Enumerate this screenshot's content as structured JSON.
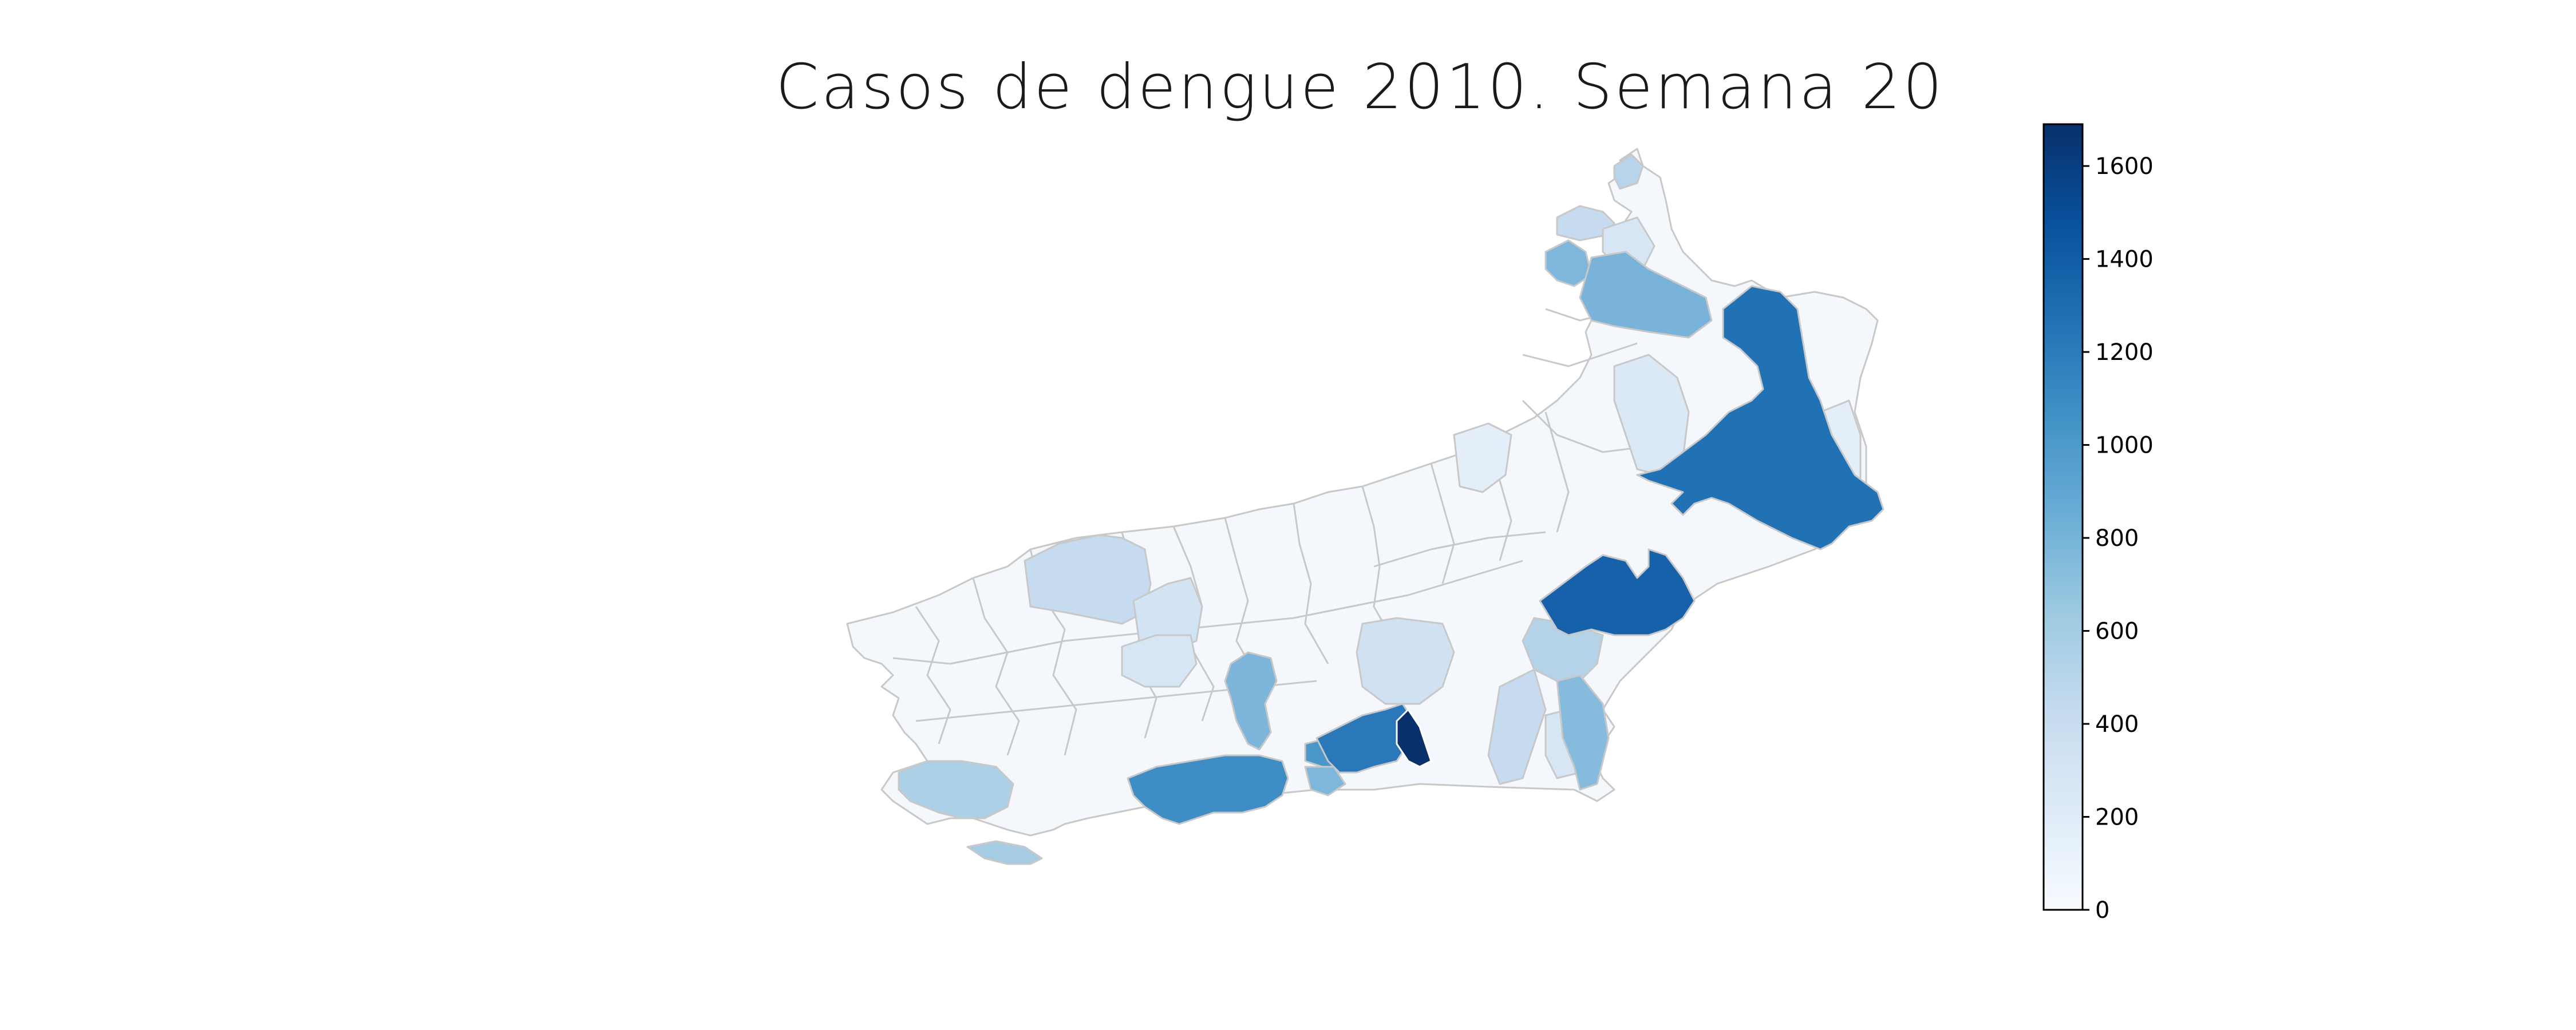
{
  "title": "Casos de dengue 2010. Semana 20",
  "colorbar": {
    "palette": [
      "#f7fbff",
      "#deebf7",
      "#c6dbef",
      "#9ecae1",
      "#6baed6",
      "#4292c6",
      "#2171b5",
      "#08519c",
      "#08306b"
    ],
    "min": 0,
    "max": 1690,
    "ticks": [
      {
        "value": 0,
        "label": "0"
      },
      {
        "value": 200,
        "label": "200"
      },
      {
        "value": 400,
        "label": "400"
      },
      {
        "value": 600,
        "label": "600"
      },
      {
        "value": 800,
        "label": "800"
      },
      {
        "value": 1000,
        "label": "1000"
      },
      {
        "value": 1200,
        "label": "1200"
      },
      {
        "value": 1400,
        "label": "1400"
      },
      {
        "value": 1600,
        "label": "1600"
      }
    ]
  },
  "map": {
    "region": "Rio de Janeiro state municipalities",
    "border_color": "#c8c8c8",
    "highlighted_cases": [
      {
        "id": "region-hotspot-a",
        "cases": 1690
      },
      {
        "id": "region-ne-large",
        "cases": 1230
      },
      {
        "id": "region-central-east",
        "cases": 1330
      },
      {
        "id": "region-south-capital",
        "cases": 1050
      },
      {
        "id": "region-south-mid",
        "cases": 1180
      },
      {
        "id": "region-south-mid2",
        "cases": 1040
      },
      {
        "id": "region-north-a",
        "cases": 720
      },
      {
        "id": "region-north-b",
        "cases": 780
      },
      {
        "id": "region-mid-a",
        "cases": 750
      },
      {
        "id": "region-coast-a",
        "cases": 800
      },
      {
        "id": "region-west-a",
        "cases": 430
      },
      {
        "id": "region-west-b",
        "cases": 560
      },
      {
        "id": "region-island",
        "cases": 590
      },
      {
        "id": "region-center-a",
        "cases": 420
      },
      {
        "id": "region-east-a",
        "cases": 560
      }
    ]
  }
}
